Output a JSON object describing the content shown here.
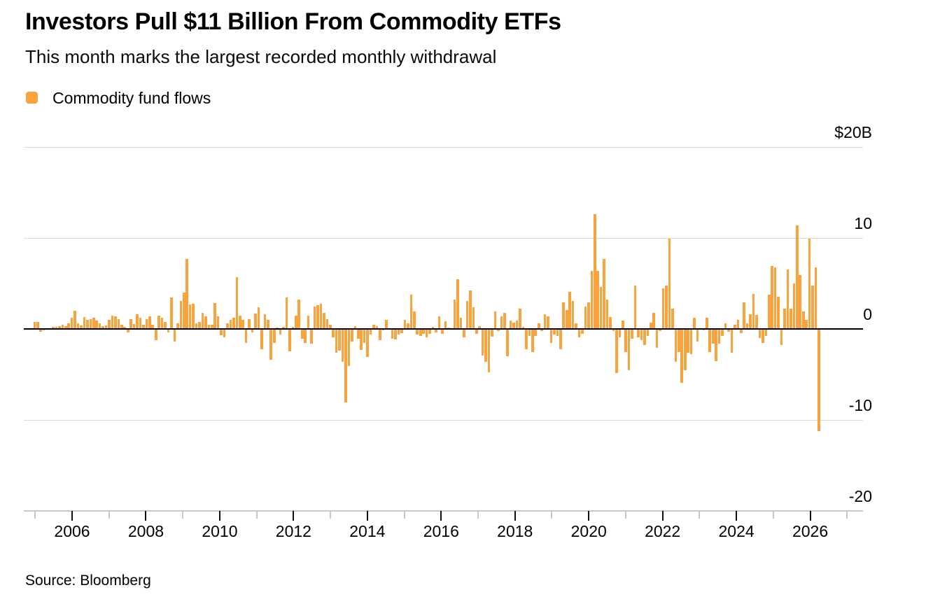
{
  "header": {
    "title": "Investors Pull $11 Billion From Commodity ETFs",
    "subtitle": "This month marks the largest recorded monthly withdrawal"
  },
  "legend": {
    "label": "Commodity fund flows",
    "color": "#FAA23C"
  },
  "source": "Source: Bloomberg",
  "chart_data": {
    "type": "bar",
    "title": "Investors Pull $11 Billion From Commodity ETFs",
    "subtitle": "This month marks the largest recorded monthly withdrawal",
    "series_name": "Commodity fund flows",
    "unit": "USD billions",
    "frequency": "monthly",
    "start_month": "2005-01",
    "end_month": "2026-01",
    "bar_color": "#FAA23C",
    "ylim": [
      -20,
      20
    ],
    "grid": "horizontal",
    "legend_position": "top-left",
    "y_ticks": [
      {
        "label": "$20B",
        "value": 20
      },
      {
        "label": "10",
        "value": 10
      },
      {
        "label": "0",
        "value": 0
      },
      {
        "label": "-10",
        "value": -10
      },
      {
        "label": "-20",
        "value": -20
      }
    ],
    "x_tick_labels": [
      "2006",
      "2008",
      "2010",
      "2012",
      "2014",
      "2016",
      "2018",
      "2020",
      "2022",
      "2024",
      "2026"
    ],
    "x_minor_tick_years": [
      2005,
      2007,
      2009,
      2011,
      2013,
      2015,
      2017,
      2019,
      2021,
      2023,
      2025,
      2027
    ],
    "monthly_values": [
      0.75,
      0.8,
      -0.3,
      -0.15,
      0.05,
      0.1,
      0.2,
      0.25,
      0.3,
      0.5,
      0.3,
      0.6,
      1.2,
      2.0,
      0.6,
      0.4,
      1.3,
      1.0,
      1.1,
      1.2,
      0.9,
      0.6,
      0.3,
      0.4,
      1.0,
      1.5,
      1.4,
      1.05,
      0.45,
      0.25,
      -0.35,
      1.1,
      0.55,
      1.6,
      1.2,
      0.5,
      1.05,
      1.35,
      0.45,
      -1.25,
      1.45,
      1.25,
      0.8,
      -0.35,
      3.5,
      -1.35,
      0.6,
      3.1,
      4.0,
      7.7,
      2.7,
      2.8,
      0.65,
      0.75,
      1.8,
      1.4,
      0.5,
      0.5,
      2.85,
      1.4,
      -0.7,
      -0.9,
      0.6,
      1.0,
      1.25,
      5.7,
      1.45,
      1.0,
      -1.55,
      1.1,
      -0.4,
      1.7,
      2.35,
      -2.2,
      1.65,
      1.0,
      -3.35,
      -1.5,
      0.15,
      -0.6,
      0.25,
      3.5,
      -2.45,
      0.2,
      1.45,
      3.25,
      -1.1,
      -1.5,
      1.45,
      -1.65,
      2.45,
      2.6,
      2.8,
      1.8,
      1.1,
      0.45,
      -0.9,
      -2.6,
      -2.4,
      -3.6,
      -8.1,
      -4.1,
      -1.4,
      0.3,
      -1.1,
      -2.3,
      -1.5,
      -3.1,
      -0.6,
      0.5,
      0.3,
      -1.2,
      -0.15,
      1.0,
      0.1,
      -1.05,
      -1.15,
      -0.65,
      -0.45,
      1.0,
      0.6,
      3.8,
      1.9,
      -0.65,
      -0.8,
      -0.55,
      -0.95,
      -0.55,
      0.25,
      -0.4,
      1.4,
      -0.55,
      0.85,
      0.15,
      0.1,
      3.25,
      5.5,
      1.25,
      -0.9,
      3.1,
      4.25,
      2.35,
      -0.55,
      0.3,
      -2.9,
      -3.6,
      -4.8,
      -0.85,
      1.9,
      -0.2,
      1.35,
      1.75,
      -3.0,
      0.9,
      0.7,
      0.9,
      2.2,
      0.2,
      -2.2,
      -0.8,
      -2.55,
      -0.8,
      0.65,
      -0.2,
      1.65,
      1.4,
      -1.55,
      -0.65,
      -0.8,
      -2.2,
      2.95,
      2.05,
      4.1,
      3.1,
      0.65,
      -0.9,
      -0.5,
      2.45,
      2.95,
      6.4,
      12.6,
      6.4,
      4.6,
      7.7,
      3.2,
      1.3,
      -0.25,
      -4.85,
      -0.9,
      0.9,
      -2.55,
      -4.5,
      -1.05,
      4.8,
      -0.95,
      -1.2,
      -1.8,
      -0.8,
      0.7,
      1.75,
      -2.1,
      -0.2,
      4.45,
      4.8,
      9.9,
      2.25,
      -3.65,
      -2.5,
      -5.95,
      -4.55,
      -2.6,
      -2.8,
      1.2,
      -1.35,
      -0.1,
      -0.15,
      1.25,
      -2.5,
      -1.6,
      -3.5,
      -1.6,
      -0.8,
      0.6,
      -0.3,
      -2.6,
      0.5,
      1.0,
      -0.45,
      2.9,
      0.6,
      1.6,
      3.85,
      1.55,
      -1.0,
      -1.5,
      -0.8,
      3.75,
      6.95,
      6.8,
      3.55,
      -1.75,
      2.2,
      6.55,
      2.2,
      5.0,
      11.4,
      5.9,
      1.95,
      1.0,
      9.9,
      4.75,
      6.8,
      -11.2
    ]
  }
}
